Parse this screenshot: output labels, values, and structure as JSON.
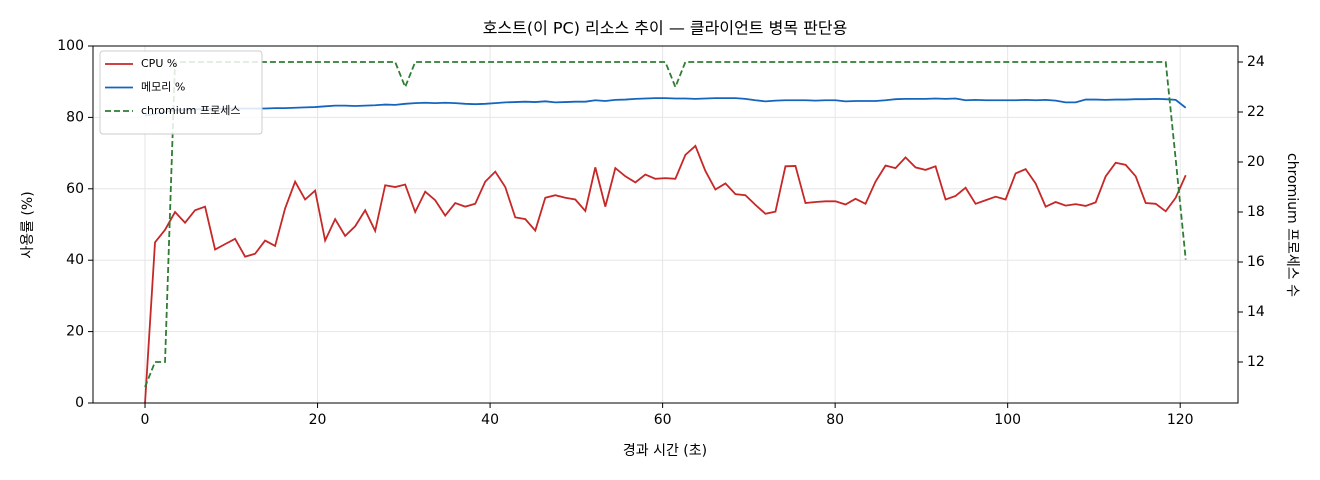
{
  "chart_data": {
    "type": "line",
    "title": "호스트(이 PC) 리소스 추이 — 클라이언트 병목 판단용",
    "xlabel": "경과 시간 (초)",
    "ylabel": "사용률 (%)",
    "y2label": "chromium 프로세스 수",
    "x": [
      0,
      1.16,
      2.32,
      3.48,
      4.64,
      5.8,
      6.96,
      8.12,
      9.28,
      10.44,
      11.6,
      12.76,
      13.92,
      15.08,
      16.24,
      17.4,
      18.56,
      19.72,
      20.88,
      22.04,
      23.2,
      24.36,
      25.52,
      26.68,
      27.84,
      29,
      30.16,
      31.32,
      32.48,
      33.64,
      34.8,
      35.96,
      37.12,
      38.28,
      39.44,
      40.6,
      41.76,
      42.92,
      44.08,
      45.24,
      46.4,
      47.56,
      48.72,
      49.88,
      51.04,
      52.2,
      53.36,
      54.52,
      55.68,
      56.84,
      58,
      59.16,
      60.32,
      61.48,
      62.64,
      63.8,
      64.96,
      66.12,
      67.28,
      68.44,
      69.6,
      70.76,
      71.92,
      73.08,
      74.24,
      75.4,
      76.56,
      77.72,
      78.88,
      80.04,
      81.2,
      82.36,
      83.52,
      84.68,
      85.84,
      87,
      88.16,
      89.32,
      90.48,
      91.64,
      92.8,
      93.96,
      95.12,
      96.28,
      97.44,
      98.6,
      99.76,
      100.92,
      102.08,
      103.24,
      104.4,
      105.56,
      106.72,
      107.88,
      109.04,
      110.2,
      111.36,
      112.52,
      113.68,
      114.84,
      116,
      117.16,
      118.32,
      119.48,
      120.64
    ],
    "series": [
      {
        "name": "CPU %",
        "color": "#c62828",
        "linestyle": "solid",
        "axis": "y",
        "values": [
          0,
          45,
          48.5,
          53.5,
          50.5,
          54,
          55,
          43,
          44.5,
          46,
          41,
          41.8,
          45.5,
          44,
          54.5,
          62,
          57,
          59.5,
          45.5,
          51.5,
          46.8,
          49.5,
          54,
          48.2,
          61,
          60.5,
          61.2,
          53.5,
          59.2,
          56.8,
          52.5,
          56,
          55,
          55.8,
          62,
          64.8,
          60.5,
          52,
          51.5,
          48.3,
          57.5,
          58.2,
          57.5,
          57,
          53.8,
          66,
          55,
          65.8,
          63.5,
          61.8,
          64,
          62.8,
          63,
          62.8,
          69.5,
          72,
          65,
          59.8,
          61.5,
          58.5,
          58.2,
          55.5,
          53,
          53.6,
          66.3,
          66.4,
          56,
          56.3,
          56.5,
          56.5,
          55.6,
          57.2,
          55.8,
          62,
          66.5,
          65.8,
          68.8,
          66,
          65.3,
          66.3,
          57,
          58,
          60.3,
          55.8,
          56.8,
          57.8,
          57,
          64.3,
          65.5,
          61.5,
          55,
          56.3,
          55.3,
          55.7,
          55.2,
          56.2,
          63.5,
          67.3,
          66.7,
          63.5,
          56,
          55.8,
          53.7,
          57.5,
          63.8
        ]
      },
      {
        "name": "메모리 %",
        "color": "#1565c0",
        "linestyle": "solid",
        "axis": "y",
        "values": [
          80.5,
          81,
          81.5,
          82,
          82.2,
          82.3,
          82.3,
          82.4,
          82.4,
          82.5,
          82.5,
          82.5,
          82.5,
          82.6,
          82.6,
          82.7,
          82.8,
          82.9,
          83.1,
          83.3,
          83.3,
          83.2,
          83.3,
          83.4,
          83.6,
          83.5,
          83.8,
          84,
          84.1,
          84,
          84.1,
          84,
          83.8,
          83.7,
          83.8,
          84,
          84.2,
          84.3,
          84.4,
          84.3,
          84.5,
          84.2,
          84.3,
          84.4,
          84.4,
          84.8,
          84.6,
          84.9,
          85,
          85.2,
          85.3,
          85.4,
          85.4,
          85.3,
          85.3,
          85.2,
          85.3,
          85.4,
          85.4,
          85.4,
          85.2,
          84.8,
          84.5,
          84.7,
          84.8,
          84.8,
          84.8,
          84.7,
          84.8,
          84.8,
          84.5,
          84.6,
          84.6,
          84.6,
          84.8,
          85.1,
          85.2,
          85.2,
          85.2,
          85.3,
          85.2,
          85.3,
          84.8,
          84.9,
          84.8,
          84.8,
          84.8,
          84.8,
          84.9,
          84.8,
          84.9,
          84.7,
          84.2,
          84.2,
          85,
          85,
          84.9,
          85,
          85,
          85.1,
          85.1,
          85.2,
          85.1,
          84.9,
          82.7
        ]
      },
      {
        "name": "chromium 프로세스",
        "color": "#2e7d32",
        "linestyle": "dashed",
        "axis": "y2",
        "values": [
          11,
          12,
          12,
          24,
          24,
          24,
          24,
          24,
          24,
          24,
          24,
          24,
          24,
          24,
          24,
          24,
          24,
          24,
          24,
          24,
          24,
          24,
          24,
          24,
          24,
          24,
          23,
          24,
          24,
          24,
          24,
          24,
          24,
          24,
          24,
          24,
          24,
          24,
          24,
          24,
          24,
          24,
          24,
          24,
          24,
          24,
          24,
          24,
          24,
          24,
          24,
          24,
          24,
          23,
          24,
          24,
          24,
          24,
          24,
          24,
          24,
          24,
          24,
          24,
          24,
          24,
          24,
          24,
          24,
          24,
          24,
          24,
          24,
          24,
          24,
          24,
          24,
          24,
          24,
          24,
          24,
          24,
          24,
          24,
          24,
          24,
          24,
          24,
          24,
          24,
          24,
          24,
          24,
          24,
          24,
          24,
          24,
          24,
          24,
          24,
          24,
          24,
          24,
          20.1,
          16.1
        ]
      }
    ],
    "xlim": [
      -6.03,
      126.7
    ],
    "xticks": [
      0,
      20,
      40,
      60,
      80,
      100,
      120
    ],
    "ylim": [
      0,
      100
    ],
    "yticks": [
      0,
      20,
      40,
      60,
      80,
      100
    ],
    "y2lim": [
      10.36,
      24.64
    ],
    "y2ticks": [
      12,
      14,
      16,
      18,
      20,
      22,
      24
    ],
    "grid": true,
    "legend": "upper left"
  }
}
